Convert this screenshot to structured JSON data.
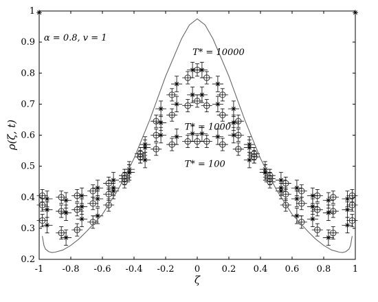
{
  "chart_data": {
    "type": "scatter",
    "title": "",
    "xlabel": "ζ",
    "ylabel": "ρ(ζ, t)",
    "xlim": [
      -1,
      1
    ],
    "ylim": [
      0.2,
      1.0
    ],
    "xticks": [
      -1,
      -0.8,
      -0.6,
      -0.4,
      -0.2,
      0,
      0.2,
      0.4,
      0.6,
      0.8,
      1
    ],
    "xtick_labels": [
      "-1",
      "-0.8",
      "-0.6",
      "-0.4",
      "-0.2",
      "0",
      "0.2",
      "0.4",
      "0.6",
      "0.8",
      "1"
    ],
    "yticks": [
      0.2,
      0.3,
      0.4,
      0.5,
      0.6,
      0.7,
      0.8,
      0.9,
      1
    ],
    "ytick_labels": [
      "0.2",
      "0.3",
      "0.4",
      "0.5",
      "0.6",
      "0.7",
      "0.8",
      "0.9",
      "1"
    ],
    "grid": false,
    "annotations": [
      {
        "text": "α = 0.8, v = 1",
        "x": -0.97,
        "y": 0.905
      },
      {
        "text": "T* = 10000",
        "x": -0.03,
        "y": 0.858
      },
      {
        "text": "T* = 1000",
        "x": -0.08,
        "y": 0.618
      },
      {
        "text": "T* = 100",
        "x": -0.08,
        "y": 0.498
      }
    ],
    "series": [
      {
        "marker": "circle",
        "x": [
          -0.98,
          -0.86,
          -0.76,
          -0.66,
          -0.56,
          -0.46,
          -0.36,
          -0.26,
          -0.16,
          -0.06,
          0.0,
          0.06,
          0.16,
          0.26,
          0.36,
          0.46,
          0.56,
          0.66,
          0.76,
          0.86,
          0.98
        ],
        "y": [
          0.405,
          0.4,
          0.405,
          0.42,
          0.445,
          0.47,
          0.54,
          0.645,
          0.73,
          0.785,
          0.81,
          0.785,
          0.73,
          0.645,
          0.54,
          0.47,
          0.445,
          0.42,
          0.405,
          0.4,
          0.405
        ],
        "err": 0.02
      },
      {
        "marker": "circle",
        "x": [
          -0.98,
          -0.86,
          -0.76,
          -0.66,
          -0.56,
          -0.46,
          -0.36,
          -0.26,
          -0.16,
          -0.06,
          0.0,
          0.06,
          0.16,
          0.26,
          0.36,
          0.46,
          0.56,
          0.66,
          0.76,
          0.86,
          0.98
        ],
        "y": [
          0.375,
          0.355,
          0.36,
          0.38,
          0.41,
          0.46,
          0.53,
          0.6,
          0.665,
          0.695,
          0.71,
          0.695,
          0.665,
          0.6,
          0.53,
          0.46,
          0.41,
          0.38,
          0.36,
          0.355,
          0.375
        ],
        "err": 0.02
      },
      {
        "marker": "circle",
        "x": [
          -0.98,
          -0.86,
          -0.76,
          -0.66,
          -0.56,
          -0.46,
          -0.36,
          -0.26,
          -0.16,
          -0.06,
          0.0,
          0.06,
          0.16,
          0.26,
          0.36,
          0.46,
          0.56,
          0.66,
          0.76,
          0.86,
          0.98
        ],
        "y": [
          0.325,
          0.285,
          0.295,
          0.32,
          0.375,
          0.45,
          0.53,
          0.555,
          0.57,
          0.58,
          0.58,
          0.58,
          0.57,
          0.555,
          0.53,
          0.45,
          0.375,
          0.32,
          0.295,
          0.285,
          0.325
        ],
        "err": 0.02
      },
      {
        "marker": "asterisk",
        "x": [
          -0.95,
          -0.83,
          -0.73,
          -0.63,
          -0.53,
          -0.43,
          -0.33,
          -0.23,
          -0.13,
          -0.03,
          0.03,
          0.13,
          0.23,
          0.33,
          0.43,
          0.53,
          0.63,
          0.73,
          0.83,
          0.95
        ],
        "y": [
          0.395,
          0.39,
          0.405,
          0.43,
          0.455,
          0.49,
          0.56,
          0.685,
          0.765,
          0.81,
          0.81,
          0.765,
          0.685,
          0.56,
          0.49,
          0.455,
          0.43,
          0.405,
          0.39,
          0.395
        ],
        "err": 0.025
      },
      {
        "marker": "asterisk",
        "x": [
          -0.95,
          -0.83,
          -0.73,
          -0.63,
          -0.53,
          -0.43,
          -0.33,
          -0.23,
          -0.13,
          -0.03,
          0.03,
          0.13,
          0.23,
          0.33,
          0.43,
          0.53,
          0.63,
          0.73,
          0.83,
          0.95
        ],
        "y": [
          0.36,
          0.35,
          0.37,
          0.395,
          0.43,
          0.48,
          0.57,
          0.64,
          0.7,
          0.73,
          0.73,
          0.7,
          0.64,
          0.57,
          0.48,
          0.43,
          0.395,
          0.37,
          0.35,
          0.36
        ],
        "err": 0.025
      },
      {
        "marker": "asterisk",
        "x": [
          -0.95,
          -0.83,
          -0.73,
          -0.63,
          -0.53,
          -0.43,
          -0.33,
          -0.23,
          -0.13,
          -0.03,
          0.03,
          0.13,
          0.23,
          0.33,
          0.43,
          0.53,
          0.63,
          0.73,
          0.83,
          0.95
        ],
        "y": [
          0.31,
          0.27,
          0.33,
          0.34,
          0.42,
          0.48,
          0.52,
          0.6,
          0.595,
          0.605,
          0.605,
          0.595,
          0.6,
          0.52,
          0.48,
          0.42,
          0.34,
          0.33,
          0.27,
          0.31
        ],
        "err": 0.025
      },
      {
        "type": "line",
        "x": [
          -0.98,
          -0.97,
          -0.96,
          -0.94,
          -0.92,
          -0.9,
          -0.85,
          -0.8,
          -0.75,
          -0.7,
          -0.6,
          -0.5,
          -0.4,
          -0.3,
          -0.2,
          -0.1,
          -0.05,
          0.0,
          0.05,
          0.1,
          0.2,
          0.3,
          0.4,
          0.5,
          0.6,
          0.7,
          0.75,
          0.8,
          0.85,
          0.9,
          0.92,
          0.94,
          0.96,
          0.97,
          0.98
        ],
        "y": [
          0.275,
          0.245,
          0.233,
          0.225,
          0.222,
          0.223,
          0.23,
          0.245,
          0.265,
          0.29,
          0.345,
          0.425,
          0.525,
          0.65,
          0.79,
          0.91,
          0.955,
          0.975,
          0.955,
          0.91,
          0.79,
          0.65,
          0.525,
          0.425,
          0.345,
          0.29,
          0.265,
          0.245,
          0.23,
          0.223,
          0.222,
          0.225,
          0.233,
          0.245,
          0.275
        ]
      },
      {
        "marker": "asterisk",
        "x": [
          -1.0,
          1.0
        ],
        "y": [
          0.995,
          0.995
        ]
      }
    ]
  }
}
